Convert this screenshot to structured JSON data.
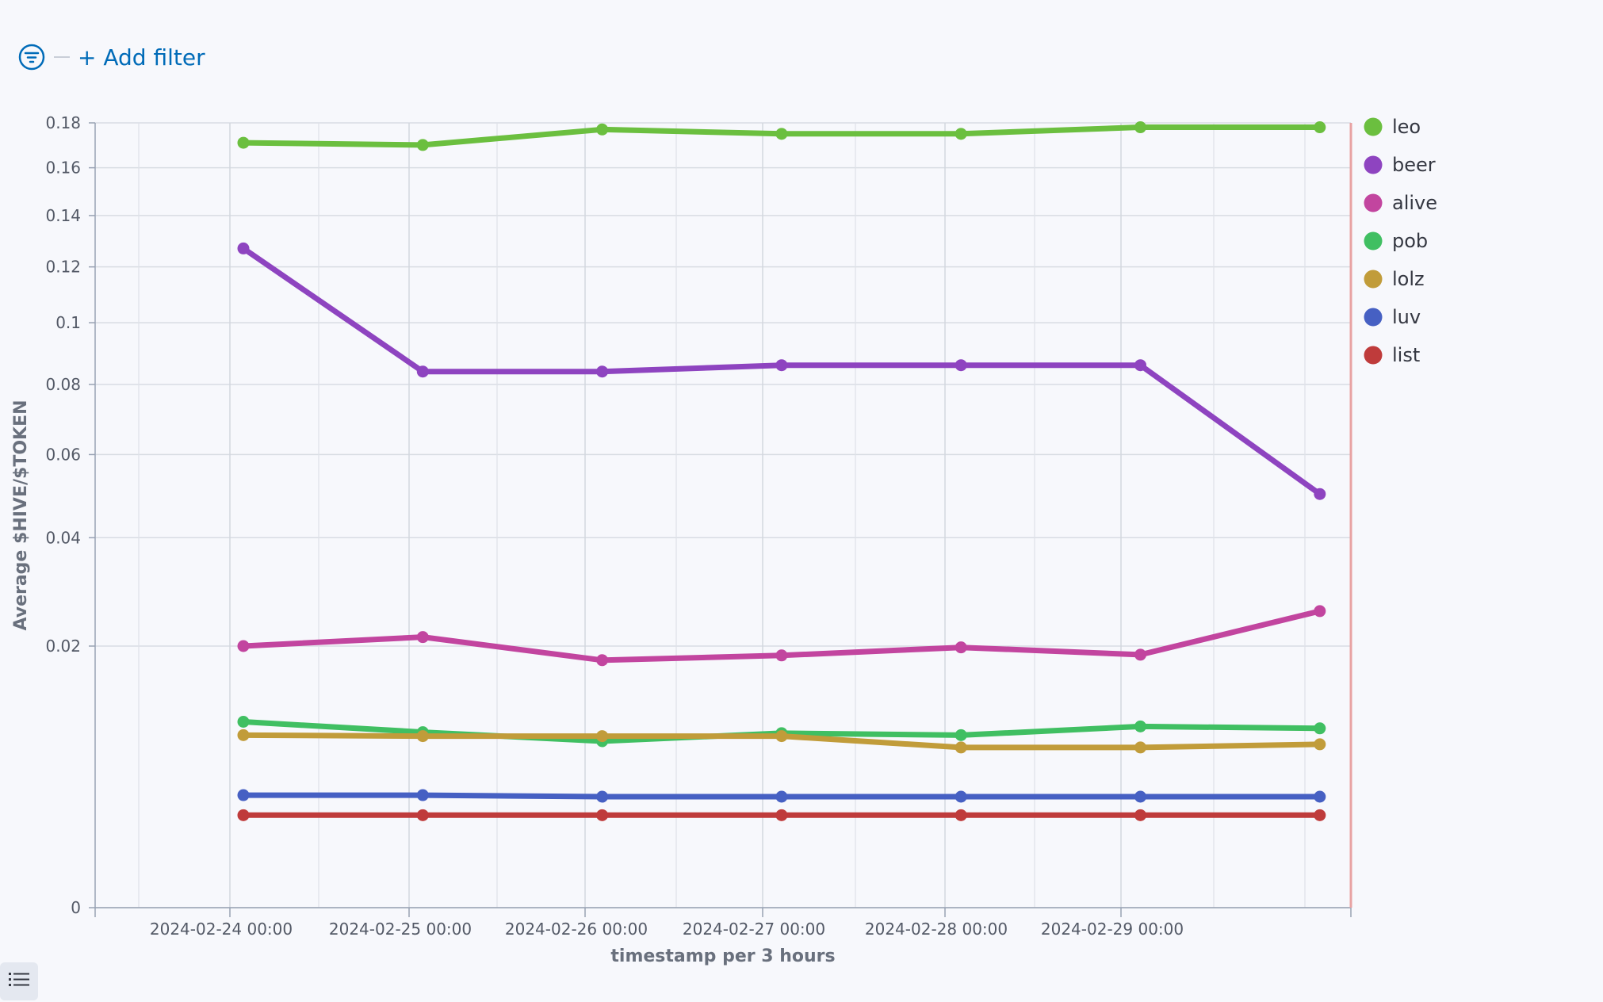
{
  "filter_bar": {
    "add_filter_label": "+ Add filter"
  },
  "chart_data": {
    "type": "line",
    "title": "",
    "xlabel": "timestamp per 3 hours",
    "ylabel": "Average $HIVE/$TOKEN",
    "y_scale": "sqrt",
    "ylim": [
      0,
      0.18
    ],
    "y_ticks": [
      0,
      0.02,
      0.04,
      0.06,
      0.08,
      0.1,
      0.12,
      0.14,
      0.16,
      0.18
    ],
    "y_tick_labels": [
      "0",
      "0.02",
      "0.04",
      "0.06",
      "0.08",
      "0.1",
      "0.12",
      "0.14",
      "0.16",
      "0.18"
    ],
    "x_tick_labels": [
      "2024-02-24 00:00",
      "2024-02-25 00:00",
      "2024-02-26 00:00",
      "2024-02-27 00:00",
      "2024-02-28 00:00",
      "2024-02-29 00:00"
    ],
    "grid": true,
    "legend_position": "right",
    "series": [
      {
        "name": "leo",
        "color": "#6bbf3f",
        "values": [
          0.171,
          0.17,
          0.177,
          0.175,
          0.175,
          0.178,
          0.178
        ]
      },
      {
        "name": "beer",
        "color": "#8e44c0",
        "values": [
          0.127,
          0.084,
          0.084,
          0.086,
          0.086,
          0.086,
          0.05
        ]
      },
      {
        "name": "alive",
        "color": "#c2459f",
        "values": [
          0.02,
          0.0214,
          0.0179,
          0.0186,
          0.0198,
          0.0187,
          0.0257
        ]
      },
      {
        "name": "pob",
        "color": "#40bf62",
        "values": [
          0.0101,
          0.009,
          0.0081,
          0.0089,
          0.0087,
          0.0096,
          0.0094
        ]
      },
      {
        "name": "lolz",
        "color": "#c19c3a",
        "values": [
          0.0087,
          0.0086,
          0.0086,
          0.0086,
          0.0075,
          0.0075,
          0.0078
        ]
      },
      {
        "name": "luv",
        "color": "#4660c3",
        "values": [
          0.0037,
          0.0037,
          0.0036,
          0.0036,
          0.0036,
          0.0036,
          0.0036
        ]
      },
      {
        "name": "list",
        "color": "#bf3b3b",
        "values": [
          0.0025,
          0.0025,
          0.0025,
          0.0025,
          0.0025,
          0.0025,
          0.0025
        ]
      }
    ]
  }
}
